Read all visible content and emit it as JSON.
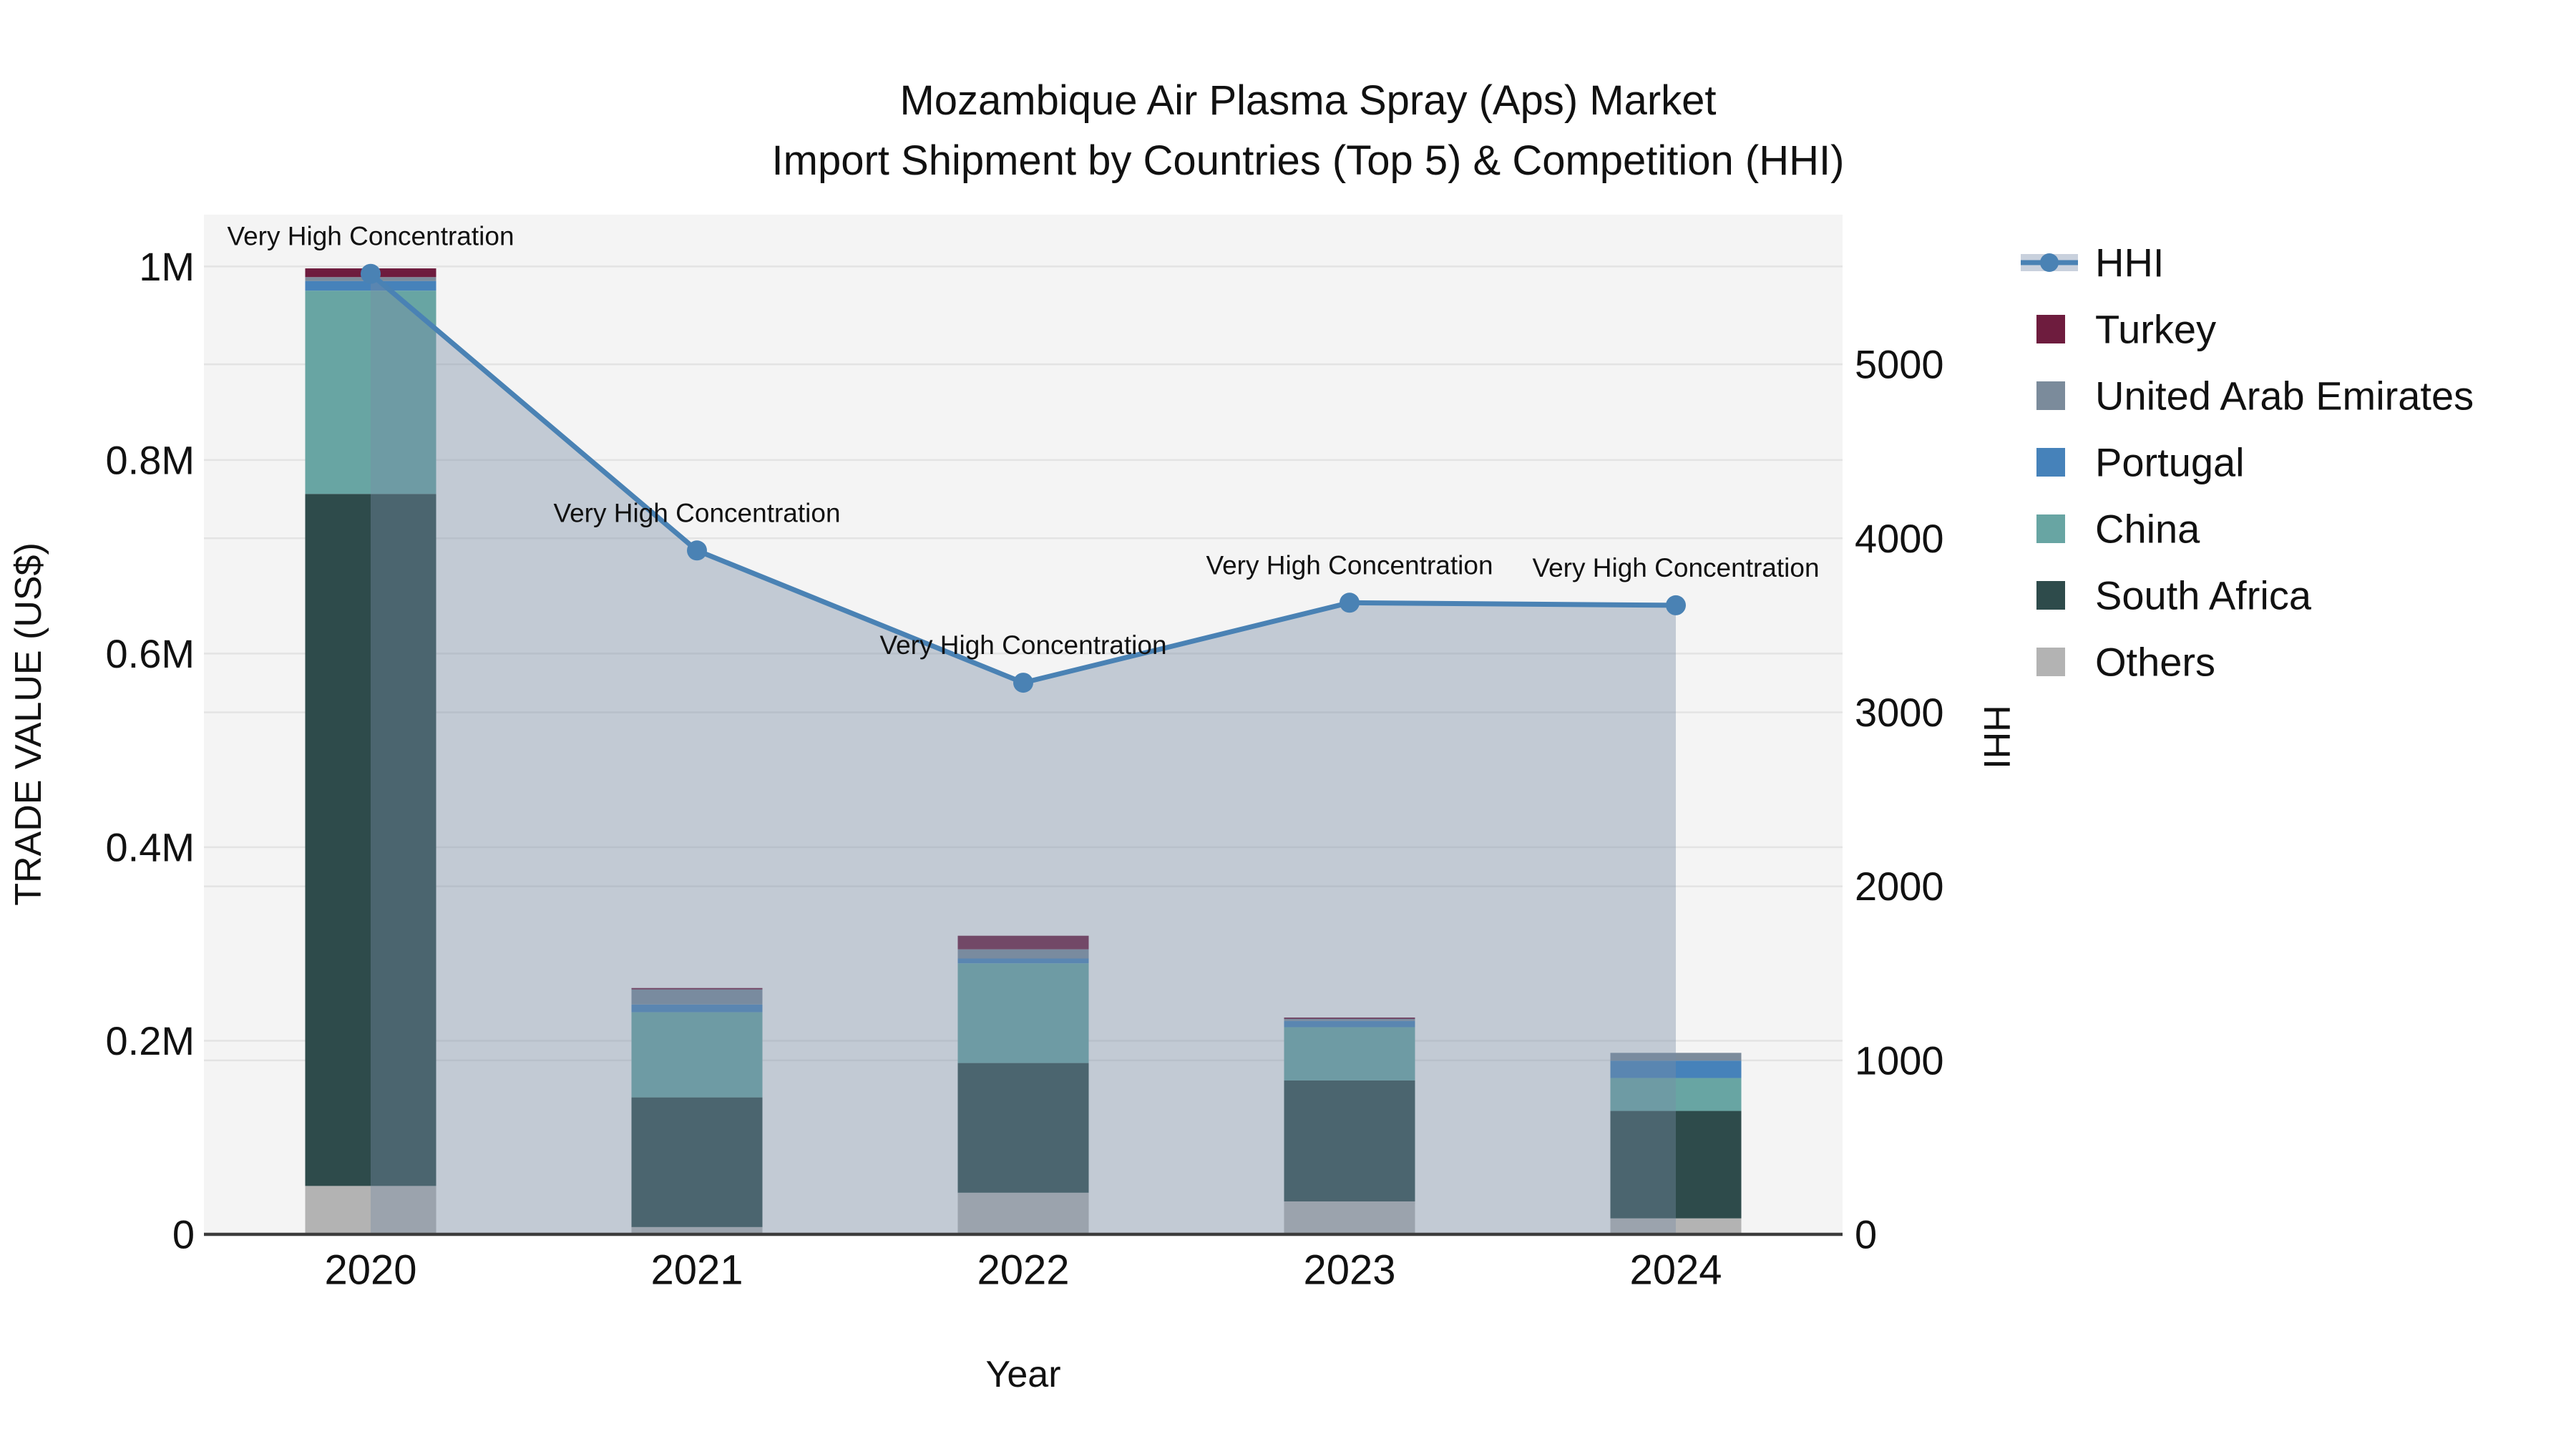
{
  "title": {
    "line1": "Mozambique Air Plasma Spray (Aps) Market",
    "line2": "Import Shipment by Countries (Top 5) & Competition (HHI)"
  },
  "axes": {
    "x": {
      "label": "Year",
      "categories": [
        "2020",
        "2021",
        "2022",
        "2023",
        "2024"
      ]
    },
    "left": {
      "label": "TRADE VALUE (US$)",
      "tick_values": [
        0,
        200000,
        400000,
        600000,
        800000,
        1000000
      ],
      "tick_labels": [
        "0",
        "0.2M",
        "0.4M",
        "0.6M",
        "0.8M",
        "1M"
      ],
      "max": 1053500
    },
    "right": {
      "label": "HHI",
      "tick_values": [
        0,
        1000,
        2000,
        3000,
        4000,
        5000
      ],
      "tick_labels": [
        "0",
        "1000",
        "2000",
        "3000",
        "4000",
        "5000"
      ],
      "max": 5860
    }
  },
  "legend": {
    "items": [
      "HHI",
      "Turkey",
      "United Arab Emirates",
      "Portugal",
      "China",
      "South Africa",
      "Others"
    ]
  },
  "annotations": {
    "per_year": [
      "Very High Concentration",
      "Very High Concentration",
      "Very High Concentration",
      "Very High Concentration",
      "Very High Concentration"
    ]
  },
  "theme": {
    "plot_bg": "#f4f4f4",
    "grid": "#e3e3e3",
    "spine": "#3c3c3c",
    "text": "#111111",
    "hhi_line": "#4a82b4",
    "hhi_area": "#788ca5",
    "hhi_area_alpha": 0.4,
    "hhi_legend_band": "#c9d1dd"
  },
  "chart_data": {
    "type": "combo-stacked-bar-line",
    "categories": [
      "2020",
      "2021",
      "2022",
      "2023",
      "2024"
    ],
    "bar_unit": "US$",
    "bar_series_bottom_to_top": [
      {
        "name": "Others",
        "color": "#b3b3b3",
        "values": [
          50000,
          7500,
          43000,
          34000,
          16500
        ]
      },
      {
        "name": "South Africa",
        "color": "#2e4b4b",
        "values": [
          715000,
          134000,
          134000,
          125000,
          111000
        ]
      },
      {
        "name": "China",
        "color": "#68a5a3",
        "values": [
          210000,
          88000,
          103000,
          55000,
          34000
        ]
      },
      {
        "name": "Portugal",
        "color": "#4682ba",
        "values": [
          10000,
          8000,
          5000,
          6500,
          18000
        ]
      },
      {
        "name": "United Arab Emirates",
        "color": "#7b8b9b",
        "values": [
          4000,
          15500,
          9500,
          2000,
          8000
        ]
      },
      {
        "name": "Turkey",
        "color": "#6e1c3e",
        "values": [
          9000,
          1500,
          14000,
          1500,
          0
        ]
      }
    ],
    "line_series": {
      "name": "HHI",
      "color": "#4a82b4",
      "values": [
        5520,
        3930,
        3170,
        3630,
        3615
      ]
    },
    "title": "Mozambique Air Plasma Spray (Aps) Market — Import Shipment by Countries (Top 5) & Competition (HHI)",
    "xlabel": "Year",
    "ylabel": "TRADE VALUE (US$)",
    "y2label": "HHI",
    "ylim": [
      0,
      1053500
    ],
    "y2lim": [
      0,
      5860
    ],
    "grid": true,
    "legend_position": "right"
  }
}
